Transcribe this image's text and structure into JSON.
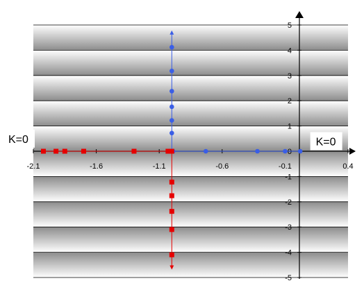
{
  "chart_data": {
    "type": "scatter",
    "xlim": [
      -2.1,
      0.4
    ],
    "ylim": [
      -5,
      5
    ],
    "x_ticks": [
      -2.1,
      -1.6,
      -1.1,
      -0.6,
      -0.1,
      0.4
    ],
    "x_tick_labels": [
      "-2.1",
      "-1.6",
      "-1.1",
      "-0.6",
      "-0.1",
      "0.4"
    ],
    "y_ticks": [
      5,
      4,
      3,
      2,
      1,
      0,
      -1,
      -2,
      -3,
      -4,
      -5
    ],
    "y_tick_labels": [
      "5",
      "4",
      "3",
      "2",
      "1",
      "0",
      "-1",
      "-2",
      "-3",
      "-4",
      "-5"
    ],
    "grid": true,
    "annotations": [
      {
        "text": "K=0",
        "x": -2.1,
        "y": 0.5
      },
      {
        "text": "K=0",
        "x": 0.1,
        "y": 0.4
      }
    ],
    "series": [
      {
        "color": "#3a5ee6",
        "marker": "circle",
        "points": [
          [
            0.02,
            0
          ],
          [
            -0.1,
            0
          ],
          [
            -0.32,
            0
          ],
          [
            -0.73,
            0
          ],
          [
            -0.99,
            0
          ],
          [
            -1.0,
            0.72
          ],
          [
            -1.0,
            1.22
          ],
          [
            -1.0,
            1.76
          ],
          [
            -1.0,
            2.38
          ],
          [
            -1.0,
            3.18
          ],
          [
            -1.0,
            4.12
          ]
        ],
        "arrow_to": [
          -1.0,
          4.75
        ]
      },
      {
        "color": "#e60000",
        "marker": "square",
        "points": [
          [
            -2.02,
            0
          ],
          [
            -1.92,
            0
          ],
          [
            -1.85,
            0
          ],
          [
            -1.7,
            0
          ],
          [
            -1.3,
            0
          ],
          [
            -1.03,
            0
          ],
          [
            -1.0,
            0
          ],
          [
            -1.0,
            -1.22
          ],
          [
            -1.0,
            -1.76
          ],
          [
            -1.0,
            -2.38
          ],
          [
            -1.0,
            -3.1
          ],
          [
            -1.0,
            -4.1
          ]
        ],
        "arrow_to": [
          -1.0,
          -4.65
        ]
      }
    ]
  }
}
